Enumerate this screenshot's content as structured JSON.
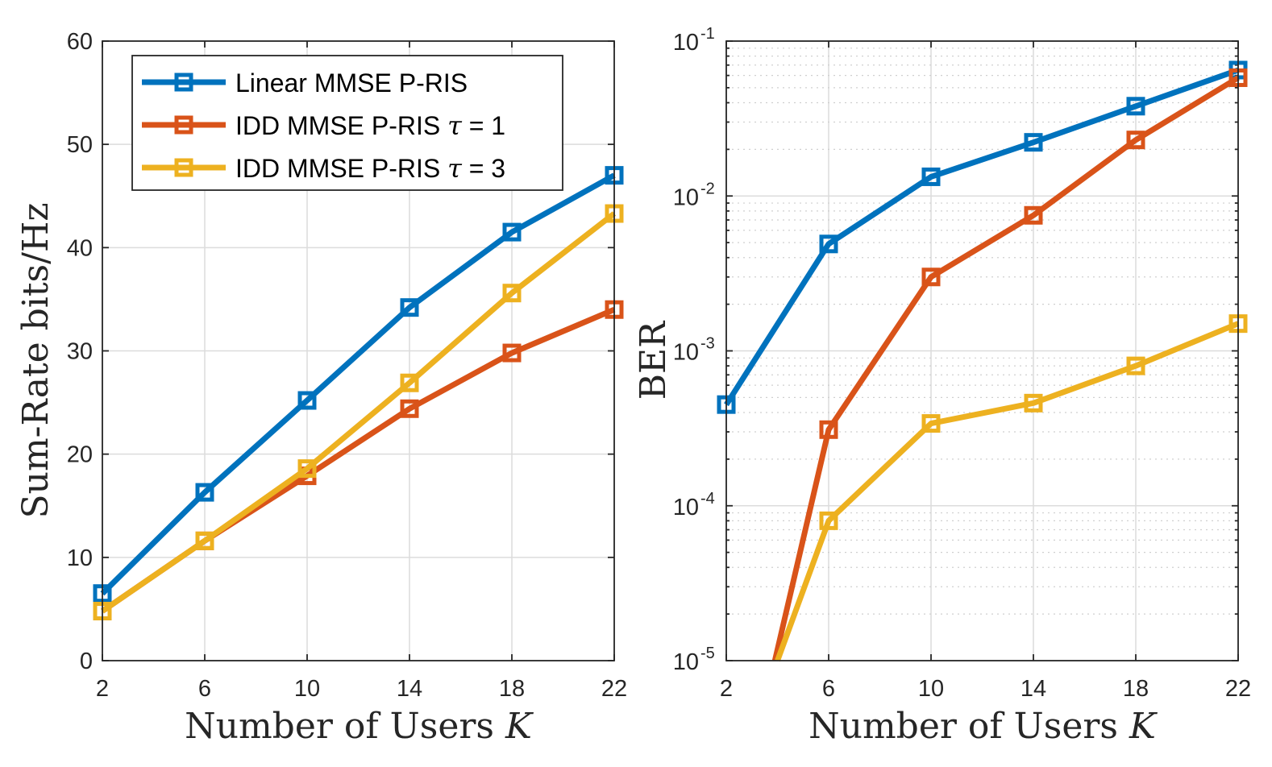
{
  "colors": {
    "blue": "#0072BD",
    "orange": "#D95319",
    "yellow": "#EDB120"
  },
  "chart_data": [
    {
      "type": "line",
      "xlabel_main": "Number of Users ",
      "xlabel_var": "K",
      "ylabel": "Sum-Rate bits/Hz",
      "x": [
        2,
        6,
        10,
        14,
        18,
        22
      ],
      "xticks": [
        "2",
        "6",
        "10",
        "14",
        "18",
        "22"
      ],
      "xlim": [
        2,
        22
      ],
      "ylim": [
        0,
        60
      ],
      "yticks": [
        "0",
        "10",
        "20",
        "30",
        "40",
        "50",
        "60"
      ],
      "grid": true,
      "legend_position": "top-left",
      "series": [
        {
          "name": "Linear MMSE P-RIS",
          "name_main": "Linear MMSE P-RIS",
          "name_var": "",
          "name_suffix": "",
          "color": "#0072BD",
          "values": [
            6.5,
            16.3,
            25.2,
            34.2,
            41.5,
            47.0
          ]
        },
        {
          "name": "IDD MMSE P-RIS τ = 1",
          "name_main": "IDD MMSE P-RIS ",
          "name_var": "τ",
          "name_suffix": " = 1",
          "color": "#D95319",
          "values": [
            4.8,
            11.6,
            17.9,
            24.4,
            29.8,
            34.0
          ]
        },
        {
          "name": "IDD MMSE P-RIS τ = 3",
          "name_main": "IDD MMSE P-RIS ",
          "name_var": "τ",
          "name_suffix": " = 3",
          "color": "#EDB120",
          "values": [
            4.8,
            11.6,
            18.6,
            26.9,
            35.6,
            43.3
          ]
        }
      ]
    },
    {
      "type": "line",
      "yscale": "log",
      "xlabel_main": "Number of Users ",
      "xlabel_var": "K",
      "ylabel": "BER",
      "x": [
        2,
        6,
        10,
        14,
        18,
        22
      ],
      "xticks": [
        "2",
        "6",
        "10",
        "14",
        "18",
        "22"
      ],
      "xlim": [
        2,
        22
      ],
      "ylim": [
        1e-05,
        0.1
      ],
      "yticks": [
        {
          "base": "10",
          "exp": "-5"
        },
        {
          "base": "10",
          "exp": "-4"
        },
        {
          "base": "10",
          "exp": "-3"
        },
        {
          "base": "10",
          "exp": "-2"
        },
        {
          "base": "10",
          "exp": "-1"
        }
      ],
      "grid": true,
      "series": [
        {
          "name": "Linear MMSE P-RIS",
          "color": "#0072BD",
          "x": [
            2,
            6,
            10,
            14,
            18,
            22
          ],
          "values": [
            0.00045,
            0.0049,
            0.0133,
            0.0222,
            0.038,
            0.065
          ]
        },
        {
          "name": "IDD MMSE P-RIS τ = 1",
          "color": "#D95319",
          "x": [
            3.9,
            6,
            10,
            14,
            18,
            22
          ],
          "values": [
            1e-05,
            0.00031,
            0.003,
            0.0075,
            0.023,
            0.058
          ],
          "markers_from": 1
        },
        {
          "name": "IDD MMSE P-RIS τ = 3",
          "color": "#EDB120",
          "x": [
            4.0,
            6,
            10,
            14,
            18,
            22
          ],
          "values": [
            1e-05,
            8e-05,
            0.00034,
            0.00046,
            0.0008,
            0.0015
          ],
          "markers_from": 1
        }
      ]
    }
  ]
}
